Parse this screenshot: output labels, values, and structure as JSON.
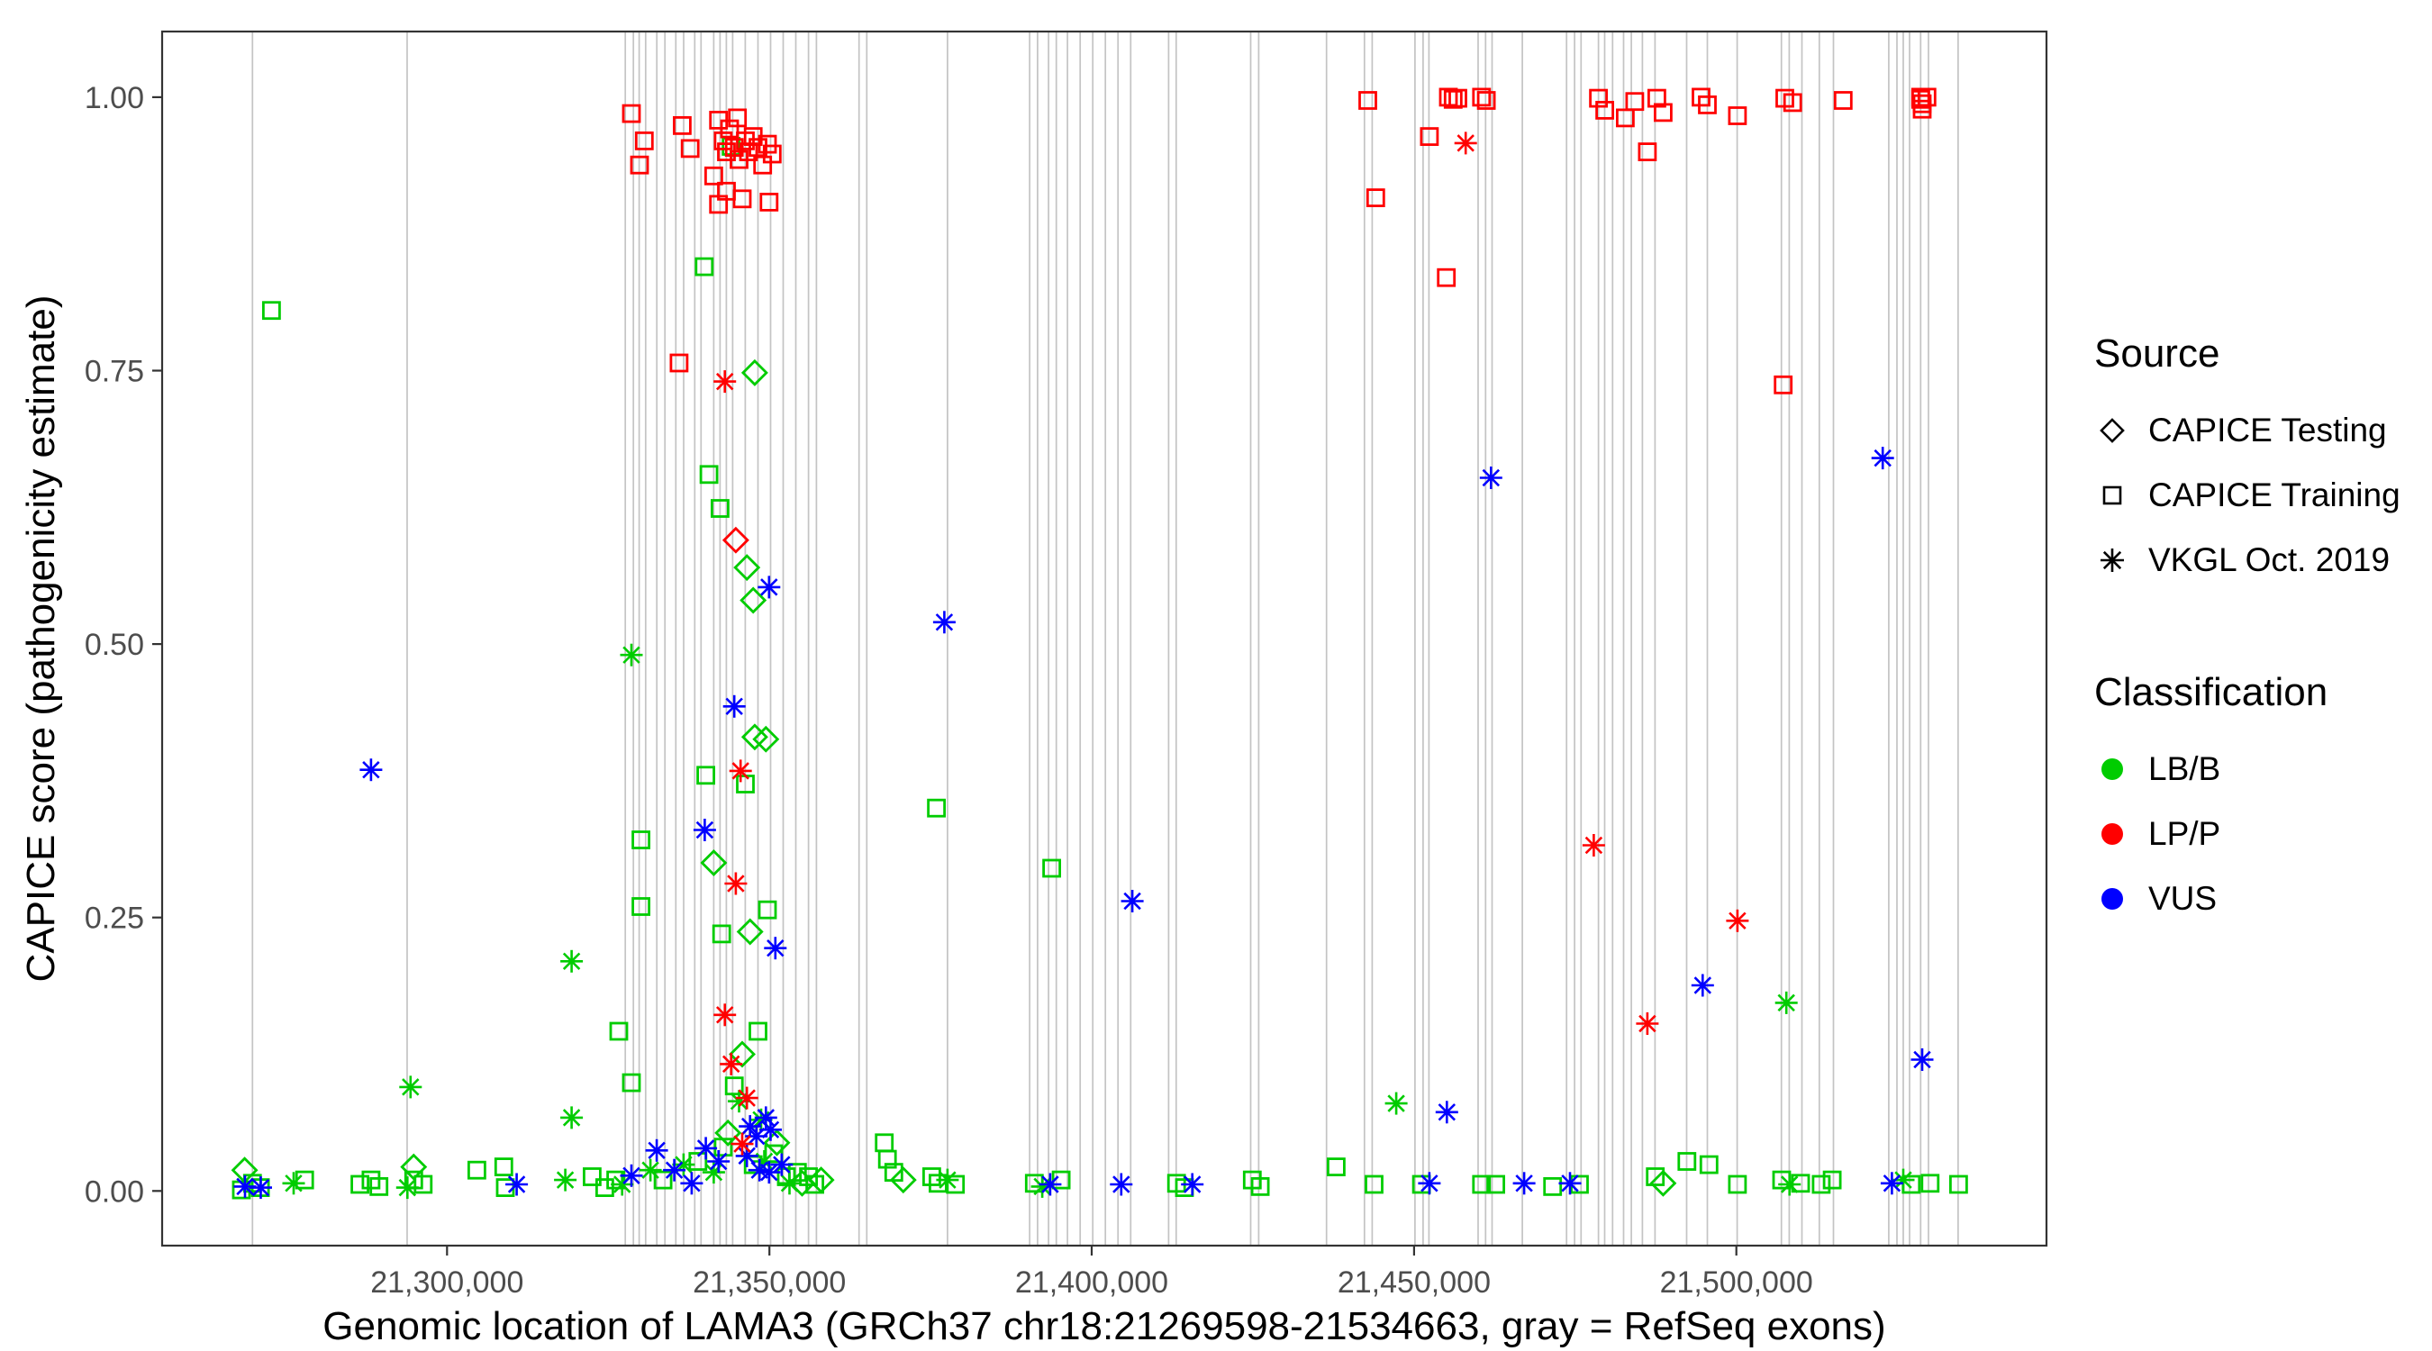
{
  "chart_data": {
    "type": "scatter",
    "title": "",
    "xlabel": "Genomic location of LAMA3 (GRCh37 chr18:21269598-21534663, gray = RefSeq exons)",
    "ylabel": "CAPICE score (pathogenicity estimate)",
    "xlim": [
      21255800,
      21548100
    ],
    "ylim": [
      -0.05,
      1.06
    ],
    "grid": false,
    "x_ticks": [
      {
        "value": 21300000,
        "label": "21,300,000"
      },
      {
        "value": 21350000,
        "label": "21,350,000"
      },
      {
        "value": 21400000,
        "label": "21,400,000"
      },
      {
        "value": 21450000,
        "label": "21,450,000"
      },
      {
        "value": 21500000,
        "label": "21,500,000"
      }
    ],
    "y_ticks": [
      {
        "value": 0.0,
        "label": "0.00"
      },
      {
        "value": 0.25,
        "label": "0.25"
      },
      {
        "value": 0.5,
        "label": "0.50"
      },
      {
        "value": 0.75,
        "label": "0.75"
      },
      {
        "value": 1.0,
        "label": "1.00"
      }
    ],
    "exon_color": "#c4c4c4",
    "panel_border_color": "#333333",
    "tick_label_color": "#4d4d4d",
    "exon_positions": [
      21269820,
      21293800,
      21327640,
      21328900,
      21329800,
      21330800,
      21332540,
      21333800,
      21335480,
      21336700,
      21338420,
      21339400,
      21341360,
      21342340,
      21343320,
      21344300,
      21346260,
      21348220,
      21350180,
      21352140,
      21354100,
      21356060,
      21357300,
      21363900,
      21365100,
      21377620,
      21390360,
      21391600,
      21393300,
      21394500,
      21396240,
      21398200,
      21400160,
      21402120,
      21404080,
      21406040,
      21411920,
      21413100,
      21424660,
      21425900,
      21436420,
      21442300,
      21443500,
      21450140,
      21451400,
      21452300,
      21459940,
      21461100,
      21462100,
      21466800,
      21473660,
      21474900,
      21475900,
      21478600,
      21479560,
      21480800,
      21482500,
      21483700,
      21485420,
      21487380,
      21492280,
      21495500,
      21500120,
      21506980,
      21508200,
      21510160,
      21512860,
      21515060,
      21523640,
      21524900,
      21525880,
      21526860,
      21528580,
      21529800,
      21534400
    ],
    "legend": {
      "source_title": "Source",
      "sources": [
        {
          "id": "capice-testing",
          "label": "CAPICE Testing",
          "shape": "diamond"
        },
        {
          "id": "capice-training",
          "label": "CAPICE Training",
          "shape": "square"
        },
        {
          "id": "vkgl-oct-2019",
          "label": "VKGL Oct. 2019",
          "shape": "asterisk"
        }
      ],
      "classification_title": "Classification",
      "classes": [
        {
          "id": "lb-b",
          "label": "LB/B",
          "color": "#00CC00"
        },
        {
          "id": "lp-p",
          "label": "LP/P",
          "color": "#FF0000"
        },
        {
          "id": "vus",
          "label": "VUS",
          "color": "#0000FF"
        }
      ]
    },
    "point_format": "[genomic_position, capice_score, source_index(0=diamond testing,1=square training,2=asterisk vkgl), class_index(0=LB/B,1=LP/P,2=VUS)]",
    "points": [
      [
        21272760,
        0.805,
        1,
        0
      ],
      [
        21339890,
        0.845,
        1,
        0
      ],
      [
        21344060,
        0.955,
        1,
        0
      ],
      [
        21340630,
        0.655,
        1,
        0
      ],
      [
        21342350,
        0.624,
        1,
        0
      ],
      [
        21330070,
        0.321,
        1,
        0
      ],
      [
        21330070,
        0.26,
        1,
        0
      ],
      [
        21326640,
        0.146,
        1,
        0
      ],
      [
        21328600,
        0.099,
        1,
        0
      ],
      [
        21340140,
        0.38,
        1,
        0
      ],
      [
        21342590,
        0.235,
        1,
        0
      ],
      [
        21349700,
        0.257,
        1,
        0
      ],
      [
        21346270,
        0.372,
        1,
        0
      ],
      [
        21344550,
        0.096,
        1,
        0
      ],
      [
        21342840,
        0.04,
        1,
        0
      ],
      [
        21348230,
        0.146,
        1,
        0
      ],
      [
        21350670,
        0.034,
        1,
        0
      ],
      [
        21347490,
        0.024,
        1,
        0
      ],
      [
        21375910,
        0.35,
        1,
        0
      ],
      [
        21393790,
        0.295,
        1,
        0
      ],
      [
        21304620,
        0.019,
        1,
        0
      ],
      [
        21308790,
        0.022,
        1,
        0
      ],
      [
        21437920,
        0.022,
        1,
        0
      ],
      [
        21367820,
        0.044,
        1,
        0
      ],
      [
        21368310,
        0.029,
        1,
        0
      ],
      [
        21369290,
        0.017,
        1,
        0
      ],
      [
        21492320,
        0.027,
        1,
        0
      ],
      [
        21495750,
        0.024,
        1,
        0
      ],
      [
        21269820,
        0.007,
        1,
        0
      ],
      [
        21271050,
        0.003,
        1,
        0
      ],
      [
        21268100,
        0.001,
        1,
        0
      ],
      [
        21277910,
        0.01,
        1,
        0
      ],
      [
        21286490,
        0.006,
        1,
        0
      ],
      [
        21288200,
        0.01,
        1,
        0
      ],
      [
        21289430,
        0.004,
        1,
        0
      ],
      [
        21294820,
        0.01,
        1,
        0
      ],
      [
        21296290,
        0.006,
        1,
        0
      ],
      [
        21309030,
        0.003,
        1,
        0
      ],
      [
        21322500,
        0.013,
        1,
        0
      ],
      [
        21324460,
        0.003,
        1,
        0
      ],
      [
        21326170,
        0.01,
        1,
        0
      ],
      [
        21333500,
        0.01,
        1,
        0
      ],
      [
        21338910,
        0.027,
        1,
        0
      ],
      [
        21352630,
        0.013,
        1,
        0
      ],
      [
        21354350,
        0.017,
        1,
        0
      ],
      [
        21356060,
        0.013,
        1,
        0
      ],
      [
        21357040,
        0.006,
        1,
        0
      ],
      [
        21375180,
        0.013,
        1,
        0
      ],
      [
        21376160,
        0.007,
        1,
        0
      ],
      [
        21378850,
        0.006,
        1,
        0
      ],
      [
        21391100,
        0.007,
        1,
        0
      ],
      [
        21395260,
        0.01,
        1,
        0
      ],
      [
        21413150,
        0.007,
        1,
        0
      ],
      [
        21414380,
        0.003,
        1,
        0
      ],
      [
        21424910,
        0.01,
        1,
        0
      ],
      [
        21426140,
        0.004,
        1,
        0
      ],
      [
        21443800,
        0.006,
        1,
        0
      ],
      [
        21451150,
        0.006,
        1,
        0
      ],
      [
        21460460,
        0.006,
        1,
        0
      ],
      [
        21462670,
        0.006,
        1,
        0
      ],
      [
        21471490,
        0.004,
        1,
        0
      ],
      [
        21475660,
        0.006,
        1,
        0
      ],
      [
        21487420,
        0.013,
        1,
        0
      ],
      [
        21500160,
        0.006,
        1,
        0
      ],
      [
        21507020,
        0.01,
        1,
        0
      ],
      [
        21509960,
        0.007,
        1,
        0
      ],
      [
        21513150,
        0.006,
        1,
        0
      ],
      [
        21514860,
        0.01,
        1,
        0
      ],
      [
        21527110,
        0.006,
        1,
        0
      ],
      [
        21530050,
        0.007,
        1,
        0
      ],
      [
        21534460,
        0.006,
        1,
        0
      ],
      [
        21347730,
        0.748,
        0,
        0
      ],
      [
        21346510,
        0.57,
        0,
        0
      ],
      [
        21347490,
        0.54,
        0,
        0
      ],
      [
        21347730,
        0.415,
        0,
        0
      ],
      [
        21349450,
        0.413,
        0,
        0
      ],
      [
        21341370,
        0.3,
        0,
        0
      ],
      [
        21347000,
        0.237,
        0,
        0
      ],
      [
        21345780,
        0.125,
        0,
        0
      ],
      [
        21343570,
        0.053,
        0,
        0
      ],
      [
        21351160,
        0.044,
        0,
        0
      ],
      [
        21268600,
        0.019,
        0,
        0
      ],
      [
        21294820,
        0.022,
        0,
        0
      ],
      [
        21355080,
        0.007,
        0,
        0
      ],
      [
        21358020,
        0.01,
        0,
        0
      ],
      [
        21370760,
        0.01,
        0,
        0
      ],
      [
        21488640,
        0.007,
        0,
        0
      ],
      [
        21328600,
        0.49,
        2,
        0
      ],
      [
        21294330,
        0.095,
        2,
        0
      ],
      [
        21319320,
        0.21,
        2,
        0
      ],
      [
        21319320,
        0.067,
        2,
        0
      ],
      [
        21318340,
        0.01,
        2,
        0
      ],
      [
        21276200,
        0.007,
        2,
        0
      ],
      [
        21293840,
        0.003,
        2,
        0
      ],
      [
        21327150,
        0.006,
        2,
        0
      ],
      [
        21331540,
        0.019,
        2,
        0
      ],
      [
        21336690,
        0.024,
        2,
        0
      ],
      [
        21341370,
        0.017,
        2,
        0
      ],
      [
        21345290,
        0.082,
        2,
        0
      ],
      [
        21348720,
        0.065,
        2,
        0
      ],
      [
        21349210,
        0.027,
        2,
        0
      ],
      [
        21353120,
        0.007,
        2,
        0
      ],
      [
        21377630,
        0.01,
        2,
        0
      ],
      [
        21392320,
        0.004,
        2,
        0
      ],
      [
        21447230,
        0.08,
        2,
        0
      ],
      [
        21507750,
        0.172,
        2,
        0
      ],
      [
        21508240,
        0.006,
        2,
        0
      ],
      [
        21525880,
        0.01,
        2,
        0
      ],
      [
        21288200,
        0.385,
        2,
        2
      ],
      [
        21349940,
        0.552,
        2,
        2
      ],
      [
        21377140,
        0.52,
        2,
        2
      ],
      [
        21344550,
        0.443,
        2,
        2
      ],
      [
        21339970,
        0.33,
        2,
        2
      ],
      [
        21350920,
        0.222,
        2,
        2
      ],
      [
        21406300,
        0.265,
        2,
        2
      ],
      [
        21461930,
        0.652,
        2,
        2
      ],
      [
        21522700,
        0.67,
        2,
        2
      ],
      [
        21494770,
        0.188,
        2,
        2
      ],
      [
        21528820,
        0.12,
        2,
        2
      ],
      [
        21455080,
        0.072,
        2,
        2
      ],
      [
        21268650,
        0.004,
        2,
        2
      ],
      [
        21271100,
        0.003,
        2,
        2
      ],
      [
        21310790,
        0.006,
        2,
        2
      ],
      [
        21328600,
        0.014,
        2,
        2
      ],
      [
        21332520,
        0.037,
        2,
        2
      ],
      [
        21335240,
        0.019,
        2,
        2
      ],
      [
        21337940,
        0.007,
        2,
        2
      ],
      [
        21340140,
        0.039,
        2,
        2
      ],
      [
        21342100,
        0.027,
        2,
        2
      ],
      [
        21346510,
        0.032,
        2,
        2
      ],
      [
        21347000,
        0.059,
        2,
        2
      ],
      [
        21347980,
        0.05,
        2,
        2
      ],
      [
        21349450,
        0.067,
        2,
        2
      ],
      [
        21350180,
        0.056,
        2,
        2
      ],
      [
        21348470,
        0.019,
        2,
        2
      ],
      [
        21349940,
        0.017,
        2,
        2
      ],
      [
        21351900,
        0.024,
        2,
        2
      ],
      [
        21393550,
        0.006,
        2,
        2
      ],
      [
        21404570,
        0.006,
        2,
        2
      ],
      [
        21415600,
        0.006,
        2,
        2
      ],
      [
        21452380,
        0.007,
        2,
        2
      ],
      [
        21467080,
        0.007,
        2,
        2
      ],
      [
        21474190,
        0.007,
        2,
        2
      ],
      [
        21524130,
        0.007,
        2,
        2
      ],
      [
        21328600,
        0.985,
        1,
        1
      ],
      [
        21330600,
        0.96,
        1,
        1
      ],
      [
        21329850,
        0.938,
        1,
        1
      ],
      [
        21336470,
        0.974,
        1,
        1
      ],
      [
        21337700,
        0.953,
        1,
        1
      ],
      [
        21335980,
        0.757,
        1,
        1
      ],
      [
        21341370,
        0.928,
        1,
        1
      ],
      [
        21342100,
        0.979,
        1,
        1
      ],
      [
        21342100,
        0.902,
        1,
        1
      ],
      [
        21342840,
        0.96,
        1,
        1
      ],
      [
        21343330,
        0.95,
        1,
        1
      ],
      [
        21343820,
        0.971,
        1,
        1
      ],
      [
        21344550,
        0.954,
        1,
        1
      ],
      [
        21345040,
        0.981,
        1,
        1
      ],
      [
        21345290,
        0.943,
        1,
        1
      ],
      [
        21345780,
        0.907,
        1,
        1
      ],
      [
        21346270,
        0.96,
        1,
        1
      ],
      [
        21346760,
        0.95,
        1,
        1
      ],
      [
        21347490,
        0.964,
        1,
        1
      ],
      [
        21348230,
        0.954,
        1,
        1
      ],
      [
        21348960,
        0.938,
        1,
        1
      ],
      [
        21349700,
        0.957,
        1,
        1
      ],
      [
        21350430,
        0.948,
        1,
        1
      ],
      [
        21349940,
        0.904,
        1,
        1
      ],
      [
        21343330,
        0.914,
        1,
        1
      ],
      [
        21442820,
        0.997,
        1,
        1
      ],
      [
        21444050,
        0.908,
        1,
        1
      ],
      [
        21452380,
        0.964,
        1,
        1
      ],
      [
        21455320,
        1.0,
        1,
        1
      ],
      [
        21456060,
        0.998,
        1,
        1
      ],
      [
        21456790,
        0.999,
        1,
        1
      ],
      [
        21455000,
        0.835,
        1,
        1
      ],
      [
        21460460,
        1.0,
        1,
        1
      ],
      [
        21461200,
        0.997,
        1,
        1
      ],
      [
        21478600,
        0.999,
        1,
        1
      ],
      [
        21479580,
        0.988,
        1,
        1
      ],
      [
        21482760,
        0.981,
        1,
        1
      ],
      [
        21484230,
        0.996,
        1,
        1
      ],
      [
        21486190,
        0.95,
        1,
        1
      ],
      [
        21487660,
        0.999,
        1,
        1
      ],
      [
        21488640,
        0.986,
        1,
        1
      ],
      [
        21494520,
        1.0,
        1,
        1
      ],
      [
        21495500,
        0.993,
        1,
        1
      ],
      [
        21500160,
        0.983,
        1,
        1
      ],
      [
        21507260,
        0.737,
        1,
        1
      ],
      [
        21507510,
        0.999,
        1,
        1
      ],
      [
        21508730,
        0.995,
        1,
        1
      ],
      [
        21516570,
        0.997,
        1,
        1
      ],
      [
        21528580,
        1.0,
        1,
        1
      ],
      [
        21528580,
        0.998,
        1,
        1
      ],
      [
        21528820,
        0.994,
        1,
        1
      ],
      [
        21528820,
        0.989,
        1,
        1
      ],
      [
        21529560,
        1.0,
        1,
        1
      ],
      [
        21344790,
        0.595,
        0,
        1
      ],
      [
        21343080,
        0.74,
        2,
        1
      ],
      [
        21345530,
        0.384,
        2,
        1
      ],
      [
        21344790,
        0.281,
        2,
        1
      ],
      [
        21343080,
        0.161,
        2,
        1
      ],
      [
        21344060,
        0.116,
        2,
        1
      ],
      [
        21346510,
        0.085,
        2,
        1
      ],
      [
        21345780,
        0.043,
        2,
        1
      ],
      [
        21458010,
        0.958,
        2,
        1
      ],
      [
        21477870,
        0.316,
        2,
        1
      ],
      [
        21486190,
        0.153,
        2,
        1
      ],
      [
        21500160,
        0.247,
        2,
        1
      ]
    ]
  }
}
